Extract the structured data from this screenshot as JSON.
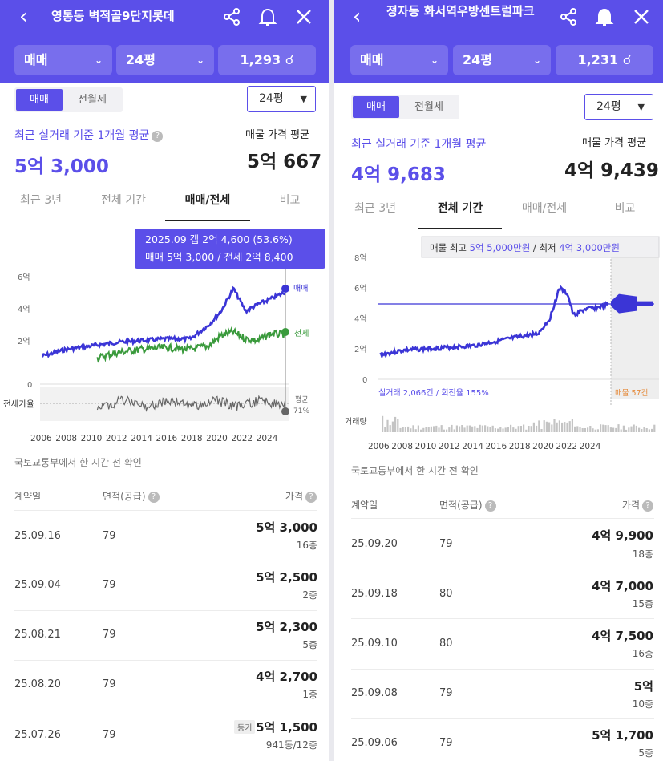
{
  "left": {
    "title": "영통동 벽적골9단지롯데",
    "filters": {
      "deal_type": "매매",
      "size": "24평",
      "count": "1,293"
    },
    "segment": {
      "sale": "매매",
      "rent": "전월세"
    },
    "size_dropdown": "24평",
    "recent_avg_label": "최근 실거래 기준 1개월 평균",
    "recent_avg_value": "5억 3,000",
    "listing_avg_label": "매물 가격 평균",
    "listing_avg_value": "5억 667",
    "tabs": [
      "최근 3년",
      "전체 기간",
      "매매/전세",
      "비교"
    ],
    "tooltip_line1": "2025.09  갭 2억 4,600 (53.6%)",
    "tooltip_line2": "매매 5억 3,000 / 전세 2억 8,400",
    "chart_y_labels": [
      "6억",
      "4억",
      "2억",
      "0"
    ],
    "series_sale_label": "매매",
    "series_jeonse_label": "전세",
    "ratio_label": "전세가율",
    "ratio_avg_label": "평균",
    "ratio_avg_value": "71%",
    "x_labels": [
      "2006",
      "2008",
      "2010",
      "2012",
      "2014",
      "2016",
      "2018",
      "2020",
      "2022",
      "2024"
    ],
    "source_note": "국토교통부에서 한 시간 전 확인",
    "table_headers": {
      "date": "계약일",
      "area": "면적(공급)",
      "price": "가격"
    },
    "rows": [
      {
        "date": "25.09.16",
        "area": "79",
        "price": "5억 3,000",
        "floor": "16층",
        "tag": ""
      },
      {
        "date": "25.09.04",
        "area": "79",
        "price": "5억 2,500",
        "floor": "2층",
        "tag": ""
      },
      {
        "date": "25.08.21",
        "area": "79",
        "price": "5억 2,300",
        "floor": "5층",
        "tag": ""
      },
      {
        "date": "25.08.20",
        "area": "79",
        "price": "4억 2,700",
        "floor": "1층",
        "tag": ""
      },
      {
        "date": "25.07.26",
        "area": "79",
        "price": "5억 1,500",
        "floor": "941동/12층",
        "tag": "등기"
      }
    ],
    "colors": {
      "sale": "#3b35d6",
      "jeonse": "#3a9a3c",
      "ratio": "#555555"
    }
  },
  "right": {
    "title": "정자동 화서역우방센트럴파크",
    "filters": {
      "deal_type": "매매",
      "size": "24평",
      "count": "1,231"
    },
    "segment": {
      "sale": "매매",
      "rent": "전월세"
    },
    "size_dropdown": "24평",
    "recent_avg_label": "최근 실거래 기준 1개월 평균",
    "recent_avg_value": "4억 9,683",
    "listing_avg_label": "매물 가격 평균",
    "listing_avg_value": "4억 9,439",
    "tabs": [
      "최근 3년",
      "전체 기간",
      "매매/전세",
      "비교"
    ],
    "tooltip_prefix": "매물 최고 ",
    "tooltip_high": "5억 5,000만원",
    "tooltip_mid": " / 최저 ",
    "tooltip_low": "4억 3,000만원",
    "chart_y_labels": [
      "8억",
      "6억",
      "4억",
      "2억",
      "0"
    ],
    "real_trade_label": "실거래 2,066건 / 회전율 155%",
    "listing_label": "매물 57건",
    "volume_label": "거래량",
    "x_labels": [
      "2006",
      "2008",
      "2010",
      "2012",
      "2014",
      "2016",
      "2018",
      "2020",
      "2022",
      "2024"
    ],
    "source_note": "국토교통부에서 한 시간 전 확인",
    "table_headers": {
      "date": "계약일",
      "area": "면적(공급)",
      "price": "가격"
    },
    "rows": [
      {
        "date": "25.09.20",
        "area": "79",
        "price": "4억 9,900",
        "floor": "18층"
      },
      {
        "date": "25.09.18",
        "area": "80",
        "price": "4억 7,000",
        "floor": "15층"
      },
      {
        "date": "25.09.10",
        "area": "80",
        "price": "4억 7,500",
        "floor": "16층"
      },
      {
        "date": "25.09.08",
        "area": "79",
        "price": "5억",
        "floor": "10층"
      },
      {
        "date": "25.09.06",
        "area": "79",
        "price": "5억 1,700",
        "floor": "5층"
      }
    ],
    "colors": {
      "sale": "#3b35d6",
      "listing": "#e58a3b"
    }
  },
  "chart_data": [
    {
      "type": "line",
      "series": [
        {
          "name": "매매",
          "x": [
            2006,
            2008,
            2010,
            2012,
            2014,
            2016,
            2018,
            2019.5,
            2020.5,
            2021.5,
            2022.5,
            2023.5,
            2024.5,
            2025.7
          ],
          "values": [
            1.6,
            2.0,
            2.2,
            2.4,
            2.5,
            2.6,
            2.6,
            3.4,
            4.2,
            5.5,
            4.2,
            4.6,
            4.9,
            5.3
          ]
        },
        {
          "name": "전세",
          "x": [
            2010.5,
            2012,
            2014,
            2016,
            2018,
            2019.5,
            2020.5,
            2021.5,
            2022.5,
            2023.5,
            2024.5,
            2025.7
          ],
          "values": [
            1.5,
            1.8,
            2.0,
            2.1,
            2.0,
            2.2,
            2.8,
            3.0,
            2.6,
            2.5,
            2.9,
            2.84
          ]
        }
      ],
      "ylabel": "",
      "ylim": [
        0,
        6
      ]
    },
    {
      "type": "line",
      "series": [
        {
          "x": [
            2006,
            2008,
            2010,
            2012,
            2014,
            2016,
            2018,
            2019.5,
            2020.5,
            2021.3,
            2022,
            2022.5,
            2023.5,
            2024.5,
            2025.7
          ],
          "values": [
            1.6,
            1.9,
            2.0,
            2.1,
            2.2,
            2.5,
            2.8,
            3.0,
            4.0,
            6.0,
            5.6,
            4.2,
            4.6,
            4.7,
            4.97
          ]
        }
      ],
      "ylim": [
        0,
        8
      ]
    }
  ]
}
